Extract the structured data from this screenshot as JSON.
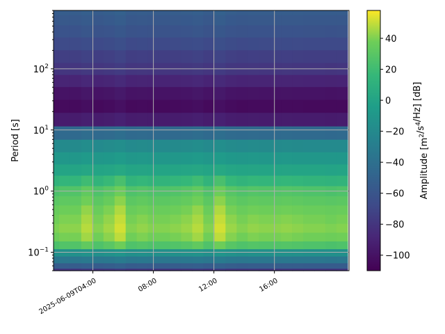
{
  "chart_data": {
    "type": "heatmap",
    "title": "",
    "xlabel": "",
    "ylabel": "Period [s]",
    "colorbar_label": "Amplitude [m²/s⁴/Hz] [dB]",
    "y_scale": "log",
    "y_range": [
      0.05,
      900
    ],
    "x_range": [
      "2025-06-09T01:24",
      "2025-06-09T20:56"
    ],
    "x_ticks": [
      {
        "time": "2025-06-09T04:00",
        "label": "2025-06-09T04:00"
      },
      {
        "time": "2025-06-09T08:00",
        "label": "08:00"
      },
      {
        "time": "2025-06-09T12:00",
        "label": "12:00"
      },
      {
        "time": "2025-06-09T16:00",
        "label": "16:00"
      }
    ],
    "y_ticks": [
      {
        "value": 0.1,
        "base": "10",
        "exp": "−1"
      },
      {
        "value": 1,
        "base": "10",
        "exp": "0"
      },
      {
        "value": 10,
        "base": "10",
        "exp": "1"
      },
      {
        "value": 100,
        "base": "10",
        "exp": "2"
      }
    ],
    "colorbar_range": [
      -110,
      58
    ],
    "colorbar_ticks": [
      -100,
      -80,
      -60,
      -40,
      -20,
      0,
      20,
      40
    ],
    "colormap": "viridis",
    "grid": true,
    "periods": [
      0.05,
      0.06,
      0.075,
      0.1,
      0.13,
      0.18,
      0.25,
      0.35,
      0.5,
      0.7,
      1.0,
      1.5,
      2.2,
      3.5,
      5.5,
      9,
      15,
      25,
      40,
      65,
      100,
      160,
      260,
      420,
      650,
      900
    ],
    "times": [
      "01:24",
      "02:08",
      "02:52",
      "03:36",
      "04:20",
      "05:04",
      "05:48",
      "06:32",
      "07:16",
      "08:00",
      "08:44",
      "09:28",
      "10:12",
      "10:56",
      "11:40",
      "12:24",
      "13:08",
      "13:52",
      "14:36",
      "15:20",
      "16:04",
      "16:48",
      "17:32",
      "18:16",
      "19:00",
      "19:44",
      "20:28"
    ],
    "period_profile_db": [
      -80,
      -55,
      -35,
      -15,
      25,
      37,
      40,
      38,
      35,
      30,
      25,
      12,
      0,
      -10,
      -20,
      -45,
      -95,
      -105,
      -100,
      -90,
      -80,
      -75,
      -68,
      -62,
      -58,
      -55
    ],
    "time_offsets_db": [
      0,
      2,
      2,
      8,
      1,
      5,
      12,
      1,
      3,
      1,
      1,
      2,
      4,
      8,
      1,
      12,
      4,
      1,
      3,
      2,
      2,
      3,
      2,
      1,
      1,
      0,
      1
    ]
  }
}
